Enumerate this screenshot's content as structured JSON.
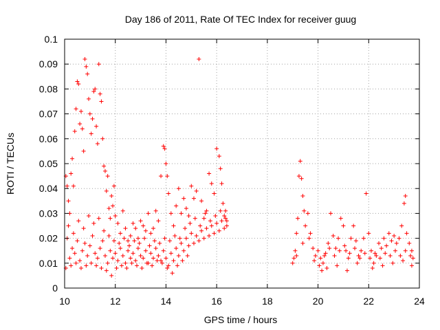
{
  "chart_data": {
    "type": "scatter",
    "title": "Day 186 of 2011, Rate Of TEC Index for receiver guug",
    "xlabel": "GPS time / hours",
    "ylabel": "ROTI / TECUs",
    "xlim": [
      10,
      24
    ],
    "ylim": [
      0,
      0.1
    ],
    "xticks": [
      10,
      12,
      14,
      16,
      18,
      20,
      22,
      24
    ],
    "xtick_labels": [
      "10",
      "12",
      "14",
      "16",
      "18",
      "20",
      "22",
      "24"
    ],
    "yticks": [
      0,
      0.01,
      0.02,
      0.03,
      0.04,
      0.05,
      0.06,
      0.07,
      0.08,
      0.09,
      0.1
    ],
    "ytick_labels": [
      "0",
      "0.01",
      "0.02",
      "0.03",
      "0.04",
      "0.05",
      "0.06",
      "0.07",
      "0.08",
      "0.09",
      "0.1"
    ],
    "grid": true,
    "marker": "+",
    "series_color": "#ff0000",
    "series": [
      {
        "values": [
          [
            10.05,
            0.045
          ],
          [
            10.1,
            0.041
          ],
          [
            10.15,
            0.035
          ],
          [
            10.2,
            0.03
          ],
          [
            10.25,
            0.046
          ],
          [
            10.3,
            0.052
          ],
          [
            10.35,
            0.041
          ],
          [
            10.4,
            0.063
          ],
          [
            10.45,
            0.072
          ],
          [
            10.5,
            0.083
          ],
          [
            10.55,
            0.082
          ],
          [
            10.6,
            0.066
          ],
          [
            10.65,
            0.071
          ],
          [
            10.7,
            0.064
          ],
          [
            10.75,
            0.055
          ],
          [
            10.8,
            0.092
          ],
          [
            10.85,
            0.089
          ],
          [
            10.9,
            0.086
          ],
          [
            10.95,
            0.076
          ],
          [
            11.0,
            0.07
          ],
          [
            11.05,
            0.062
          ],
          [
            11.1,
            0.068
          ],
          [
            11.15,
            0.079
          ],
          [
            11.2,
            0.08
          ],
          [
            11.25,
            0.065
          ],
          [
            11.3,
            0.058
          ],
          [
            11.35,
            0.09
          ],
          [
            11.4,
            0.078
          ],
          [
            11.45,
            0.075
          ],
          [
            11.5,
            0.06
          ],
          [
            11.55,
            0.049
          ],
          [
            11.6,
            0.047
          ],
          [
            11.65,
            0.039
          ],
          [
            11.7,
            0.045
          ],
          [
            11.75,
            0.032
          ],
          [
            11.8,
            0.028
          ],
          [
            11.85,
            0.037
          ],
          [
            11.9,
            0.033
          ],
          [
            11.95,
            0.041
          ],
          [
            12.0,
            0.029
          ],
          [
            12.1,
            0.026
          ],
          [
            12.2,
            0.022
          ],
          [
            12.3,
            0.031
          ],
          [
            12.4,
            0.024
          ],
          [
            12.5,
            0.019
          ],
          [
            12.6,
            0.021
          ],
          [
            12.7,
            0.026
          ],
          [
            12.8,
            0.024
          ],
          [
            12.9,
            0.02
          ],
          [
            13.0,
            0.027
          ],
          [
            13.1,
            0.025
          ],
          [
            13.2,
            0.023
          ],
          [
            13.3,
            0.03
          ],
          [
            13.4,
            0.022
          ],
          [
            13.5,
            0.024
          ],
          [
            13.6,
            0.031
          ],
          [
            13.7,
            0.027
          ],
          [
            13.8,
            0.045
          ],
          [
            13.9,
            0.057
          ],
          [
            13.95,
            0.056
          ],
          [
            14.0,
            0.05
          ],
          [
            14.05,
            0.045
          ],
          [
            14.1,
            0.038
          ],
          [
            14.2,
            0.03
          ],
          [
            14.3,
            0.025
          ],
          [
            14.4,
            0.033
          ],
          [
            14.5,
            0.04
          ],
          [
            14.6,
            0.03
          ],
          [
            14.7,
            0.036
          ],
          [
            14.8,
            0.032
          ],
          [
            14.9,
            0.029
          ],
          [
            15.0,
            0.041
          ],
          [
            15.1,
            0.036
          ],
          [
            15.2,
            0.039
          ],
          [
            15.3,
            0.092
          ],
          [
            15.4,
            0.035
          ],
          [
            15.5,
            0.028
          ],
          [
            15.6,
            0.031
          ],
          [
            15.7,
            0.046
          ],
          [
            15.8,
            0.042
          ],
          [
            15.9,
            0.038
          ],
          [
            16.0,
            0.056
          ],
          [
            16.1,
            0.053
          ],
          [
            16.15,
            0.048
          ],
          [
            16.2,
            0.042
          ],
          [
            16.25,
            0.034
          ],
          [
            16.3,
            0.029
          ],
          [
            16.35,
            0.031
          ],
          [
            16.4,
            0.027
          ],
          [
            10.1,
            0.02
          ],
          [
            10.2,
            0.012
          ],
          [
            10.3,
            0.016
          ],
          [
            10.4,
            0.014
          ],
          [
            10.5,
            0.019
          ],
          [
            10.6,
            0.011
          ],
          [
            10.7,
            0.015
          ],
          [
            10.8,
            0.018
          ],
          [
            10.9,
            0.013
          ],
          [
            11.0,
            0.017
          ],
          [
            11.1,
            0.021
          ],
          [
            11.2,
            0.014
          ],
          [
            11.3,
            0.012
          ],
          [
            11.4,
            0.016
          ],
          [
            11.5,
            0.019
          ],
          [
            11.6,
            0.013
          ],
          [
            11.7,
            0.01
          ],
          [
            11.8,
            0.015
          ],
          [
            11.9,
            0.012
          ],
          [
            12.0,
            0.014
          ],
          [
            12.1,
            0.011
          ],
          [
            12.2,
            0.016
          ],
          [
            12.3,
            0.013
          ],
          [
            12.4,
            0.01
          ],
          [
            12.5,
            0.015
          ],
          [
            12.6,
            0.012
          ],
          [
            12.7,
            0.014
          ],
          [
            12.8,
            0.011
          ],
          [
            12.9,
            0.016
          ],
          [
            13.0,
            0.013
          ],
          [
            13.1,
            0.012
          ],
          [
            13.2,
            0.015
          ],
          [
            13.3,
            0.01
          ],
          [
            13.4,
            0.014
          ],
          [
            13.5,
            0.012
          ],
          [
            13.6,
            0.016
          ],
          [
            13.7,
            0.013
          ],
          [
            13.8,
            0.011
          ],
          [
            13.9,
            0.015
          ],
          [
            14.0,
            0.012
          ],
          [
            14.1,
            0.009
          ],
          [
            14.2,
            0.014
          ],
          [
            14.3,
            0.011
          ],
          [
            14.4,
            0.016
          ],
          [
            14.5,
            0.013
          ],
          [
            14.6,
            0.018
          ],
          [
            14.7,
            0.015
          ],
          [
            14.8,
            0.02
          ],
          [
            14.9,
            0.017
          ],
          [
            15.0,
            0.022
          ],
          [
            15.1,
            0.018
          ],
          [
            15.2,
            0.021
          ],
          [
            15.3,
            0.019
          ],
          [
            15.4,
            0.023
          ],
          [
            15.5,
            0.02
          ],
          [
            15.6,
            0.024
          ],
          [
            15.7,
            0.021
          ],
          [
            15.8,
            0.025
          ],
          [
            15.9,
            0.022
          ],
          [
            16.0,
            0.026
          ],
          [
            16.1,
            0.023
          ],
          [
            16.2,
            0.027
          ],
          [
            16.3,
            0.024
          ],
          [
            16.4,
            0.025
          ],
          [
            10.15,
            0.025
          ],
          [
            10.35,
            0.022
          ],
          [
            10.55,
            0.027
          ],
          [
            10.75,
            0.024
          ],
          [
            10.95,
            0.029
          ],
          [
            11.15,
            0.026
          ],
          [
            11.35,
            0.028
          ],
          [
            11.55,
            0.023
          ],
          [
            11.75,
            0.021
          ],
          [
            11.95,
            0.019
          ],
          [
            12.15,
            0.018
          ],
          [
            12.35,
            0.02
          ],
          [
            12.55,
            0.017
          ],
          [
            12.75,
            0.019
          ],
          [
            12.95,
            0.018
          ],
          [
            13.15,
            0.02
          ],
          [
            13.35,
            0.017
          ],
          [
            13.55,
            0.019
          ],
          [
            13.75,
            0.018
          ],
          [
            13.95,
            0.02
          ],
          [
            14.15,
            0.019
          ],
          [
            14.35,
            0.021
          ],
          [
            14.55,
            0.02
          ],
          [
            14.75,
            0.024
          ],
          [
            14.95,
            0.026
          ],
          [
            15.15,
            0.028
          ],
          [
            15.35,
            0.025
          ],
          [
            15.55,
            0.03
          ],
          [
            15.75,
            0.027
          ],
          [
            15.95,
            0.029
          ],
          [
            16.15,
            0.031
          ],
          [
            16.35,
            0.028
          ],
          [
            10.05,
            0.008
          ],
          [
            10.25,
            0.009
          ],
          [
            10.45,
            0.01
          ],
          [
            10.65,
            0.008
          ],
          [
            10.85,
            0.009
          ],
          [
            11.05,
            0.01
          ],
          [
            11.25,
            0.009
          ],
          [
            11.45,
            0.008
          ],
          [
            11.65,
            0.007
          ],
          [
            11.85,
            0.005
          ],
          [
            12.05,
            0.008
          ],
          [
            12.25,
            0.009
          ],
          [
            12.45,
            0.008
          ],
          [
            12.65,
            0.01
          ],
          [
            12.85,
            0.009
          ],
          [
            13.05,
            0.008
          ],
          [
            13.25,
            0.01
          ],
          [
            13.45,
            0.009
          ],
          [
            13.65,
            0.011
          ],
          [
            13.85,
            0.01
          ],
          [
            14.05,
            0.008
          ],
          [
            14.25,
            0.006
          ],
          [
            14.45,
            0.009
          ],
          [
            14.65,
            0.011
          ],
          [
            14.85,
            0.013
          ],
          [
            19.0,
            0.01
          ],
          [
            19.05,
            0.012
          ],
          [
            19.1,
            0.015
          ],
          [
            19.15,
            0.022
          ],
          [
            19.2,
            0.028
          ],
          [
            19.25,
            0.045
          ],
          [
            19.3,
            0.051
          ],
          [
            19.35,
            0.044
          ],
          [
            19.4,
            0.037
          ],
          [
            19.45,
            0.031
          ],
          [
            19.5,
            0.025
          ],
          [
            19.6,
            0.03
          ],
          [
            19.7,
            0.022
          ],
          [
            19.8,
            0.016
          ],
          [
            19.9,
            0.013
          ],
          [
            20.0,
            0.015
          ],
          [
            20.1,
            0.012
          ],
          [
            20.2,
            0.01
          ],
          [
            20.3,
            0.014
          ],
          [
            20.4,
            0.018
          ],
          [
            20.5,
            0.03
          ],
          [
            20.6,
            0.021
          ],
          [
            20.7,
            0.016
          ],
          [
            20.8,
            0.02
          ],
          [
            20.9,
            0.028
          ],
          [
            21.0,
            0.025
          ],
          [
            21.1,
            0.015
          ],
          [
            21.2,
            0.012
          ],
          [
            21.3,
            0.02
          ],
          [
            21.4,
            0.025
          ],
          [
            21.5,
            0.019
          ],
          [
            21.6,
            0.013
          ],
          [
            21.7,
            0.015
          ],
          [
            21.8,
            0.02
          ],
          [
            21.9,
            0.038
          ],
          [
            22.0,
            0.022
          ],
          [
            22.1,
            0.015
          ],
          [
            22.2,
            0.01
          ],
          [
            22.3,
            0.013
          ],
          [
            22.4,
            0.018
          ],
          [
            22.5,
            0.016
          ],
          [
            22.6,
            0.02
          ],
          [
            22.7,
            0.017
          ],
          [
            22.8,
            0.022
          ],
          [
            22.9,
            0.019
          ],
          [
            23.0,
            0.021
          ],
          [
            23.1,
            0.018
          ],
          [
            23.2,
            0.02
          ],
          [
            23.3,
            0.025
          ],
          [
            23.4,
            0.034
          ],
          [
            23.45,
            0.037
          ],
          [
            23.5,
            0.022
          ],
          [
            23.6,
            0.018
          ],
          [
            23.7,
            0.015
          ],
          [
            23.75,
            0.012
          ],
          [
            19.15,
            0.013
          ],
          [
            19.4,
            0.018
          ],
          [
            19.65,
            0.02
          ],
          [
            19.85,
            0.011
          ],
          [
            20.05,
            0.009
          ],
          [
            20.25,
            0.013
          ],
          [
            20.45,
            0.016
          ],
          [
            20.65,
            0.013
          ],
          [
            20.85,
            0.015
          ],
          [
            21.05,
            0.017
          ],
          [
            21.25,
            0.014
          ],
          [
            21.45,
            0.016
          ],
          [
            21.65,
            0.012
          ],
          [
            21.85,
            0.014
          ],
          [
            22.05,
            0.012
          ],
          [
            22.25,
            0.014
          ],
          [
            22.45,
            0.012
          ],
          [
            22.65,
            0.014
          ],
          [
            22.85,
            0.013
          ],
          [
            23.05,
            0.015
          ],
          [
            23.25,
            0.013
          ],
          [
            23.45,
            0.015
          ],
          [
            23.65,
            0.013
          ],
          [
            20.15,
            0.007
          ],
          [
            20.35,
            0.008
          ],
          [
            20.75,
            0.009
          ],
          [
            21.15,
            0.007
          ],
          [
            21.55,
            0.01
          ],
          [
            22.15,
            0.008
          ],
          [
            22.55,
            0.009
          ],
          [
            22.95,
            0.01
          ],
          [
            23.35,
            0.011
          ],
          [
            23.7,
            0.009
          ]
        ]
      }
    ]
  }
}
